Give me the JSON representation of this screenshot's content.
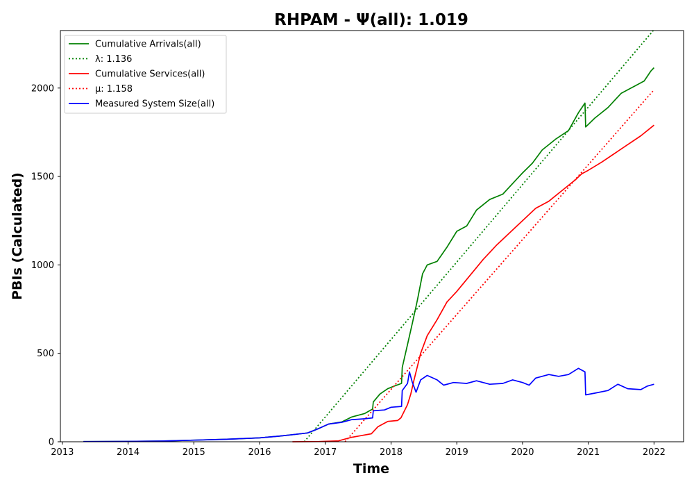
{
  "chart_data": {
    "type": "line",
    "title": "RHPAM -  Ψ(all): 1.019",
    "xlabel": "Time",
    "ylabel": "PBIs (Calculated)",
    "xlim": [
      2012.97,
      2022.45
    ],
    "ylim": [
      0,
      2325
    ],
    "x_ticks": [
      "2013",
      "2014",
      "2015",
      "2016",
      "2017",
      "2018",
      "2019",
      "2020",
      "2021",
      "2022"
    ],
    "y_ticks": [
      "0",
      "500",
      "1000",
      "1500",
      "2000"
    ],
    "grid": false,
    "legend_position": "upper-left",
    "series": [
      {
        "name": "Cumulative Arrivals(all)",
        "color": "#008000",
        "style": "solid",
        "points": [
          [
            2013.32,
            1
          ],
          [
            2014.0,
            2
          ],
          [
            2014.5,
            4
          ],
          [
            2015.0,
            9
          ],
          [
            2015.5,
            14
          ],
          [
            2016.0,
            22
          ],
          [
            2016.3,
            32
          ],
          [
            2016.5,
            40
          ],
          [
            2016.73,
            50
          ],
          [
            2016.9,
            75
          ],
          [
            2017.05,
            100
          ],
          [
            2017.25,
            112
          ],
          [
            2017.4,
            140
          ],
          [
            2017.6,
            160
          ],
          [
            2017.72,
            185
          ],
          [
            2017.73,
            225
          ],
          [
            2017.83,
            270
          ],
          [
            2017.95,
            300
          ],
          [
            2018.05,
            315
          ],
          [
            2018.16,
            330
          ],
          [
            2018.17,
            420
          ],
          [
            2018.25,
            550
          ],
          [
            2018.33,
            680
          ],
          [
            2018.4,
            800
          ],
          [
            2018.48,
            950
          ],
          [
            2018.55,
            1000
          ],
          [
            2018.7,
            1020
          ],
          [
            2018.85,
            1100
          ],
          [
            2019.0,
            1190
          ],
          [
            2019.15,
            1220
          ],
          [
            2019.3,
            1310
          ],
          [
            2019.5,
            1370
          ],
          [
            2019.7,
            1400
          ],
          [
            2019.85,
            1460
          ],
          [
            2020.0,
            1520
          ],
          [
            2020.15,
            1575
          ],
          [
            2020.3,
            1650
          ],
          [
            2020.5,
            1710
          ],
          [
            2020.7,
            1760
          ],
          [
            2020.85,
            1860
          ],
          [
            2020.95,
            1915
          ],
          [
            2020.96,
            1780
          ],
          [
            2021.1,
            1830
          ],
          [
            2021.3,
            1890
          ],
          [
            2021.5,
            1970
          ],
          [
            2021.7,
            2010
          ],
          [
            2021.85,
            2040
          ],
          [
            2021.95,
            2095
          ],
          [
            2022.0,
            2115
          ]
        ]
      },
      {
        "name": "λ: 1.136",
        "color": "#008000",
        "style": "dotted",
        "points": [
          [
            2016.68,
            0
          ],
          [
            2022.0,
            2330
          ]
        ]
      },
      {
        "name": "Cumulative Services(all)",
        "color": "#ff0000",
        "style": "solid",
        "points": [
          [
            2016.5,
            0
          ],
          [
            2016.9,
            1
          ],
          [
            2017.2,
            5
          ],
          [
            2017.4,
            25
          ],
          [
            2017.55,
            35
          ],
          [
            2017.7,
            45
          ],
          [
            2017.8,
            85
          ],
          [
            2017.95,
            115
          ],
          [
            2018.1,
            120
          ],
          [
            2018.15,
            135
          ],
          [
            2018.25,
            210
          ],
          [
            2018.3,
            270
          ],
          [
            2018.35,
            350
          ],
          [
            2018.45,
            500
          ],
          [
            2018.55,
            600
          ],
          [
            2018.7,
            690
          ],
          [
            2018.85,
            790
          ],
          [
            2019.0,
            850
          ],
          [
            2019.2,
            940
          ],
          [
            2019.4,
            1030
          ],
          [
            2019.6,
            1110
          ],
          [
            2019.8,
            1180
          ],
          [
            2020.0,
            1250
          ],
          [
            2020.2,
            1320
          ],
          [
            2020.4,
            1360
          ],
          [
            2020.6,
            1420
          ],
          [
            2020.8,
            1480
          ],
          [
            2020.9,
            1515
          ],
          [
            2021.0,
            1535
          ],
          [
            2021.2,
            1580
          ],
          [
            2021.4,
            1630
          ],
          [
            2021.6,
            1680
          ],
          [
            2021.8,
            1730
          ],
          [
            2022.0,
            1790
          ]
        ]
      },
      {
        "name": "μ: 1.158",
        "color": "#ff0000",
        "style": "dotted",
        "points": [
          [
            2017.3,
            0
          ],
          [
            2022.0,
            1990
          ]
        ]
      },
      {
        "name": "Measured System Size(all)",
        "color": "#0000ff",
        "style": "solid",
        "points": [
          [
            2013.32,
            1
          ],
          [
            2014.0,
            2
          ],
          [
            2014.5,
            4
          ],
          [
            2015.0,
            9
          ],
          [
            2015.5,
            14
          ],
          [
            2016.0,
            22
          ],
          [
            2016.3,
            32
          ],
          [
            2016.5,
            40
          ],
          [
            2016.73,
            50
          ],
          [
            2016.9,
            75
          ],
          [
            2017.05,
            100
          ],
          [
            2017.25,
            110
          ],
          [
            2017.4,
            125
          ],
          [
            2017.6,
            130
          ],
          [
            2017.72,
            135
          ],
          [
            2017.73,
            175
          ],
          [
            2017.9,
            180
          ],
          [
            2018.0,
            195
          ],
          [
            2018.16,
            200
          ],
          [
            2018.17,
            290
          ],
          [
            2018.25,
            330
          ],
          [
            2018.28,
            395
          ],
          [
            2018.32,
            340
          ],
          [
            2018.38,
            280
          ],
          [
            2018.45,
            350
          ],
          [
            2018.55,
            375
          ],
          [
            2018.7,
            350
          ],
          [
            2018.8,
            320
          ],
          [
            2018.95,
            335
          ],
          [
            2019.15,
            330
          ],
          [
            2019.3,
            345
          ],
          [
            2019.5,
            325
          ],
          [
            2019.7,
            330
          ],
          [
            2019.85,
            350
          ],
          [
            2020.0,
            335
          ],
          [
            2020.1,
            320
          ],
          [
            2020.2,
            360
          ],
          [
            2020.4,
            380
          ],
          [
            2020.55,
            370
          ],
          [
            2020.7,
            380
          ],
          [
            2020.85,
            415
          ],
          [
            2020.95,
            395
          ],
          [
            2020.96,
            265
          ],
          [
            2021.1,
            275
          ],
          [
            2021.3,
            290
          ],
          [
            2021.45,
            325
          ],
          [
            2021.6,
            300
          ],
          [
            2021.8,
            295
          ],
          [
            2021.9,
            315
          ],
          [
            2022.0,
            325
          ]
        ]
      }
    ]
  }
}
